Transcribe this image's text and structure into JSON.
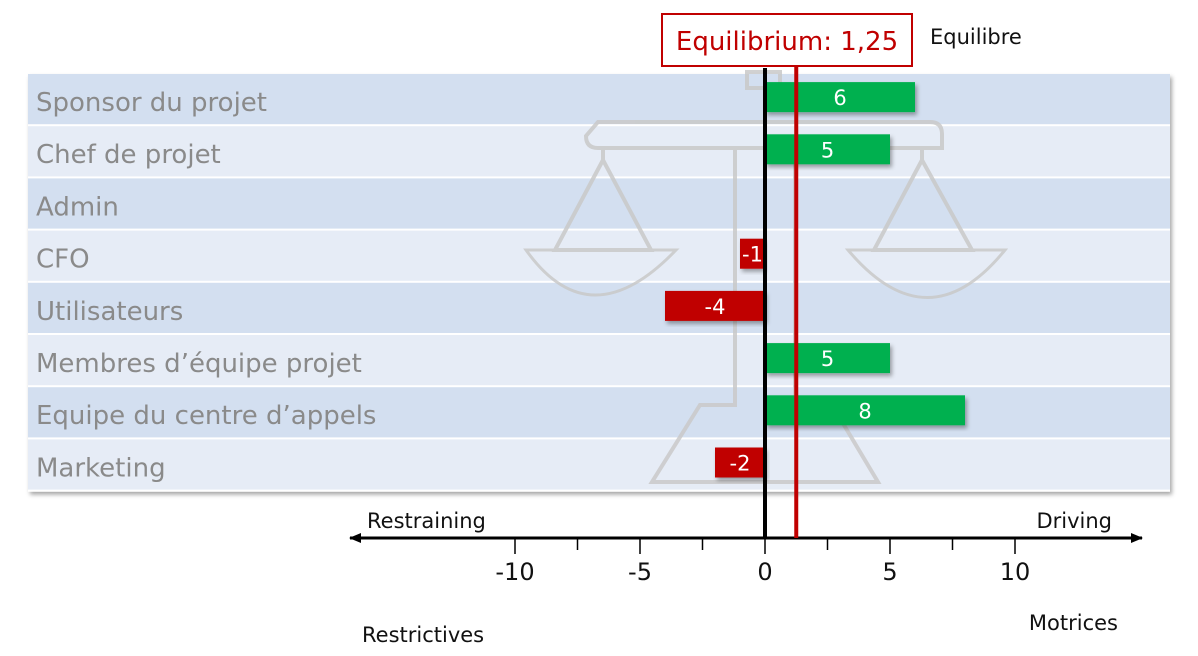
{
  "chart_data": {
    "type": "bar",
    "orientation": "horizontal",
    "categories": [
      "Sponsor du projet",
      "Chef de projet",
      "Admin",
      "CFO",
      "Utilisateurs",
      "Membres d’équipe projet",
      "Equipe du centre d’appels",
      "Marketing"
    ],
    "values": [
      6,
      5,
      0,
      -1,
      -4,
      5,
      8,
      -2
    ],
    "value_labels": [
      "6",
      "5",
      "",
      "-1",
      "-4",
      "5",
      "8",
      "-2"
    ],
    "xlim": [
      -15,
      15
    ],
    "x_ticks": [
      -10,
      -5,
      0,
      5,
      10
    ],
    "x_tick_labels": [
      "-10",
      "-5",
      "0",
      "5",
      "10"
    ],
    "equilibrium": {
      "value": 1.25,
      "label": "Equilibrium: 1,25",
      "translation": "Equilibre"
    },
    "directions": {
      "left": "Restraining",
      "right": "Driving",
      "left_translation": "Restrictives",
      "right_translation": "Motrices"
    },
    "colors": {
      "positive": "#00b050",
      "negative": "#c00000",
      "equilibrium": "#c00000",
      "band_dark": "#d3dff0",
      "band_light": "#e6ecf6",
      "watermark": "#c8c8c8"
    }
  }
}
